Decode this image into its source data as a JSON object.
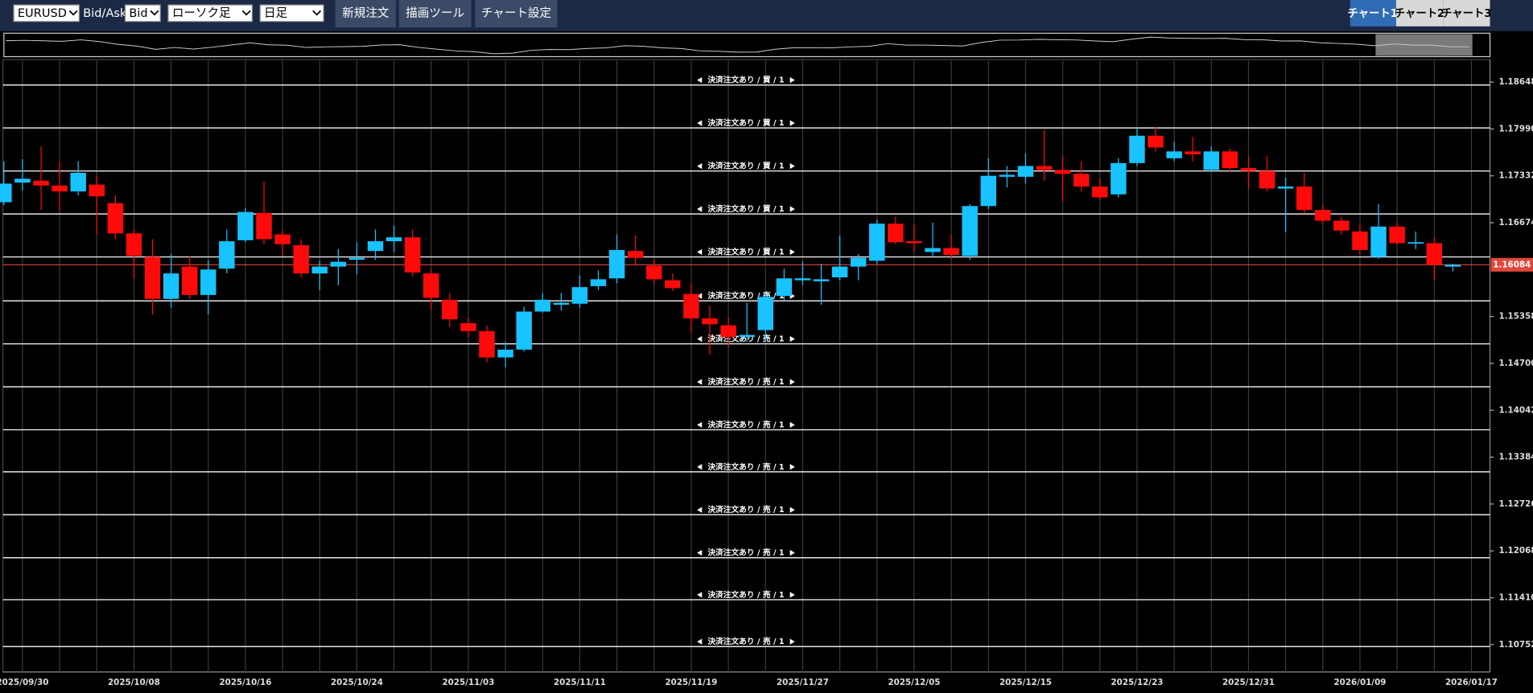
{
  "toolbar": {
    "symbol": "EURUSD",
    "bid_ask_label": "Bid/Ask",
    "bid_ask": "Bid",
    "chart_style": "ローソク足",
    "timeframe": "日足",
    "buttons": [
      "新規注文",
      "描画ツール",
      "チャート設定"
    ],
    "tabs": [
      "チャート1",
      "チャート2",
      "チャート3"
    ]
  },
  "chart_data": {
    "type": "candlestick",
    "categories": [
      null,
      "2025/09/30",
      null,
      null,
      null,
      null,
      null,
      "2025/10/08",
      null,
      null,
      null,
      null,
      null,
      "2025/10/16",
      null,
      null,
      null,
      null,
      null,
      "2025/10/24",
      null,
      null,
      null,
      null,
      null,
      "2025/11/03",
      null,
      null,
      null,
      null,
      null,
      "2025/11/11",
      null,
      null,
      null,
      null,
      null,
      "2025/11/19",
      null,
      null,
      null,
      null,
      null,
      "2025/11/27",
      null,
      null,
      null,
      null,
      null,
      "2025/12/05",
      null,
      null,
      null,
      null,
      null,
      "2025/12/15",
      null,
      null,
      null,
      null,
      null,
      "2025/12/23",
      null,
      null,
      null,
      null,
      null,
      "2025/12/31",
      null,
      null,
      null,
      null,
      null,
      "2026/01/09",
      null,
      null,
      null,
      null,
      null,
      "2026/01/17"
    ],
    "open": [
      1.16962,
      1.17237,
      1.17264,
      1.17196,
      1.17113,
      1.17209,
      1.16949,
      1.16524,
      1.16195,
      1.15605,
      1.16058,
      1.1566,
      1.1603,
      1.16428,
      1.16812,
      1.1651,
      1.16359,
      1.15962,
      1.16058,
      1.16154,
      1.16277,
      1.16414,
      1.16469,
      1.15962,
      1.15592,
      1.15263,
      1.15153,
      1.14783,
      1.14893,
      1.15427,
      1.15523,
      1.15537,
      1.15784,
      1.15893,
      1.16277,
      1.16071,
      1.15866,
      1.15674,
      1.15331,
      1.15235,
      1.15071,
      1.15167,
      1.15647,
      1.15866,
      1.15852,
      1.15907,
      1.16058,
      1.1614,
      1.16661,
      1.16414,
      1.16263,
      1.16318,
      1.16209,
      1.16908,
      1.17319,
      1.17319,
      1.1747,
      1.17415,
      1.1736,
      1.17182,
      1.17072,
      1.17511,
      1.17895,
      1.17579,
      1.17675,
      1.17415,
      1.17675,
      1.17442,
      1.17401,
      1.17154,
      1.17182,
      1.16853,
      1.16702,
      1.16551,
      1.16195,
      1.1662,
      1.16387,
      1.16387,
      1.16058,
      null
    ],
    "high": [
      1.17538,
      1.17566,
      1.17744,
      1.17538,
      1.17538,
      1.17333,
      1.17058,
      1.16579,
      1.16442,
      1.16236,
      1.16209,
      1.16154,
      1.16579,
      1.1688,
      1.1725,
      1.16565,
      1.16442,
      1.1614,
      1.16305,
      1.164,
      1.16579,
      1.16634,
      1.16579,
      1.16017,
      1.15688,
      1.15345,
      1.15235,
      1.15002,
      1.15496,
      1.15688,
      1.15688,
      1.15934,
      1.16003,
      1.1651,
      1.16496,
      1.16154,
      1.15962,
      1.15825,
      1.15509,
      1.15345,
      1.15551,
      1.15688,
      1.1603,
      1.16126,
      1.16099,
      1.16496,
      1.16236,
      1.16716,
      1.16757,
      1.16647,
      1.16675,
      1.1651,
      1.16935,
      1.17579,
      1.1747,
      1.17648,
      1.17977,
      1.17607,
      1.17538,
      1.17291,
      1.17579,
      1.18018,
      1.18018,
      1.17812,
      1.17881,
      1.17744,
      1.17716,
      1.17607,
      1.17607,
      1.17305,
      1.17374,
      1.16921,
      1.16757,
      1.16661,
      1.16935,
      1.16675,
      1.16551,
      1.16469,
      1.16099,
      null
    ],
    "low": [
      1.16921,
      1.17127,
      1.16853,
      1.16853,
      1.17058,
      1.1651,
      1.16442,
      1.15893,
      1.15386,
      1.15482,
      1.15605,
      1.15386,
      1.15962,
      1.164,
      1.16373,
      1.16209,
      1.15907,
      1.15729,
      1.15797,
      1.15948,
      1.16154,
      1.16263,
      1.15921,
      1.15441,
      1.15208,
      1.15071,
      1.14714,
      1.14646,
      1.14865,
      1.15413,
      1.15441,
      1.15482,
      1.15729,
      1.15825,
      1.16071,
      1.15825,
      1.15715,
      1.15139,
      1.14824,
      1.1492,
      1.15002,
      1.15002,
      1.15578,
      1.15797,
      1.15523,
      1.15866,
      1.15866,
      1.16099,
      1.16373,
      1.16263,
      1.16209,
      1.16167,
      1.16154,
      1.16866,
      1.17168,
      1.17223,
      1.17264,
      1.16976,
      1.17113,
      1.1699,
      1.17031,
      1.1747,
      1.17675,
      1.17538,
      1.17538,
      1.17387,
      1.17387,
      1.17154,
      1.17113,
      1.16538,
      1.16812,
      1.16661,
      1.1651,
      1.16236,
      1.16167,
      1.16373,
      1.16305,
      1.15866,
      1.15989,
      null
    ],
    "close": [
      1.17223,
      1.17291,
      1.17196,
      1.17113,
      1.17374,
      1.17045,
      1.16524,
      1.16209,
      1.15605,
      1.15962,
      1.1566,
      1.16017,
      1.16414,
      1.16825,
      1.16442,
      1.16373,
      1.15962,
      1.16058,
      1.16126,
      1.16181,
      1.16414,
      1.16469,
      1.15976,
      1.15619,
      1.15318,
      1.15153,
      1.14783,
      1.14893,
      1.15427,
      1.15592,
      1.15551,
      1.1577,
      1.1588,
      1.16291,
      1.16181,
      1.1588,
      1.15756,
      1.15331,
      1.15249,
      1.15071,
      1.15098,
      1.15633,
      1.15893,
      1.15893,
      1.1588,
      1.16058,
      1.16181,
      1.16661,
      1.164,
      1.16387,
      1.16318,
      1.16222,
      1.16908,
      1.17333,
      1.17346,
      1.1747,
      1.17415,
      1.1736,
      1.17182,
      1.17031,
      1.17511,
      1.17895,
      1.1773,
      1.17675,
      1.17634,
      1.17675,
      1.17442,
      1.17401,
      1.17154,
      1.17182,
      1.16853,
      1.16702,
      1.16565,
      1.16291,
      1.1662,
      1.16387,
      1.164,
      1.16084,
      1.16084,
      null
    ],
    "up_color": "#18c3ff",
    "down_color": "#ff0a0a",
    "ylim": [
      1.10368,
      1.1895
    ],
    "yticks": [
      1.18648,
      {
        "value": 1.1799,
        "label": "1.17990"
      },
      1.17332,
      1.16674,
      1.15358,
      {
        "value": 1.147,
        "label": "1.14700"
      },
      1.14042,
      1.13384,
      1.12726,
      1.12068,
      {
        "value": 1.1141,
        "label": "1.11410"
      },
      1.10752
    ],
    "current_price": 1.16084,
    "current_price_color": "#e0473a",
    "orders": [
      {
        "label": "決済注文あり / 買 / 1",
        "price": 1.18607
      },
      {
        "label": "決済注文あり / 買 / 1",
        "price": 1.18004
      },
      {
        "label": "決済注文あり / 買 / 1",
        "price": 1.174
      },
      {
        "label": "決済注文あり / 買 / 1",
        "price": 1.16797
      },
      {
        "label": "決済注文あり / 買 / 1",
        "price": 1.16194
      },
      {
        "label": "決済注文あり / 売 / 1",
        "price": 1.15577
      },
      {
        "label": "決済注文あり / 売 / 1",
        "price": 1.14974
      },
      {
        "label": "決済注文あり / 売 / 1",
        "price": 1.14371
      },
      {
        "label": "決済注文あり / 売 / 1",
        "price": 1.13768
      },
      {
        "label": "決済注文あり / 売 / 1",
        "price": 1.13178
      },
      {
        "label": "決済注文あり / 売 / 1",
        "price": 1.12575
      },
      {
        "label": "決済注文あり / 売 / 1",
        "price": 1.11972
      },
      {
        "label": "決済注文あり / 売 / 1",
        "price": 1.11383
      },
      {
        "label": "決済注文あり / 売 / 1",
        "price": 1.10725
      }
    ]
  }
}
